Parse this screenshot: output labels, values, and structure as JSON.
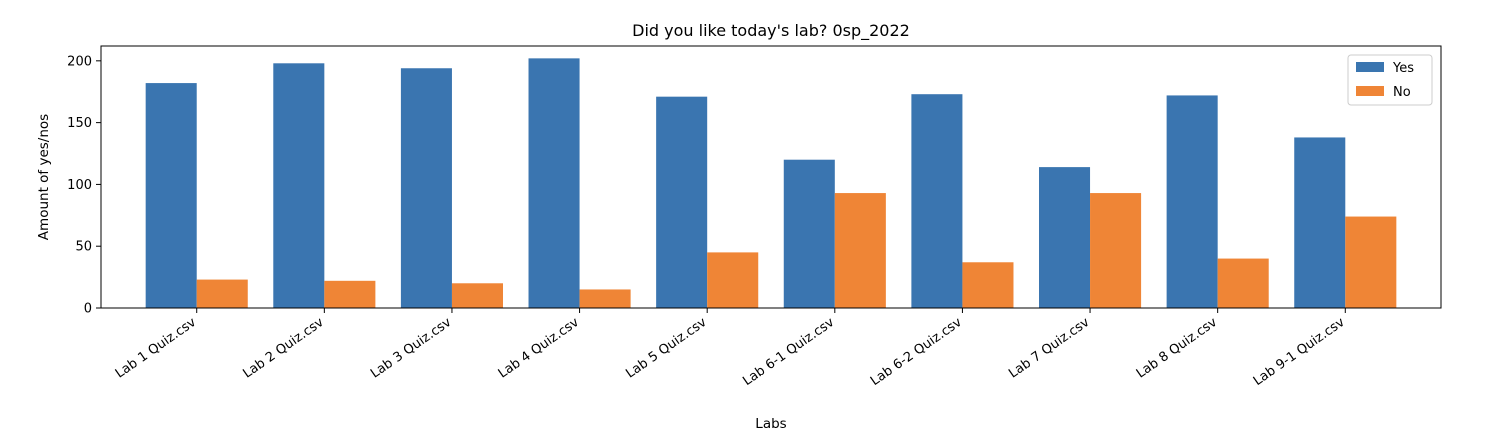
{
  "chart_data": {
    "type": "bar",
    "title": "Did you like today's lab? 0sp_2022",
    "xlabel": "Labs",
    "ylabel": "Amount of yes/nos",
    "categories": [
      "Lab 1 Quiz.csv",
      "Lab 2 Quiz.csv",
      "Lab 3 Quiz.csv",
      "Lab 4 Quiz.csv",
      "Lab 5 Quiz.csv",
      "Lab 6-1 Quiz.csv",
      "Lab 6-2 Quiz.csv",
      "Lab 7 Quiz.csv",
      "Lab 8 Quiz.csv",
      "Lab 9-1 Quiz.csv"
    ],
    "series": [
      {
        "name": "Yes",
        "color": "#3a75b0",
        "values": [
          182,
          198,
          194,
          202,
          171,
          120,
          173,
          114,
          172,
          138
        ]
      },
      {
        "name": "No",
        "color": "#ef8536",
        "values": [
          23,
          22,
          20,
          15,
          45,
          93,
          37,
          93,
          40,
          74
        ]
      }
    ],
    "ylim": [
      0,
      212
    ],
    "yticks": [
      "0",
      "50",
      "100",
      "150",
      "200"
    ],
    "grid": false,
    "legend": "top-right"
  }
}
